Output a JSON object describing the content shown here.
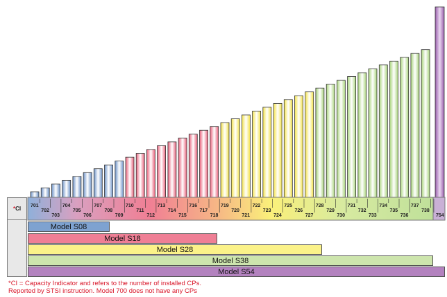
{
  "ci_header": {
    "star": "*",
    "text": "CI"
  },
  "ci_values": [
    "701",
    "702",
    "703",
    "704",
    "705",
    "706",
    "707",
    "708",
    "709",
    "710",
    "711",
    "712",
    "713",
    "714",
    "715",
    "716",
    "717",
    "718",
    "719",
    "720",
    "721",
    "722",
    "723",
    "724",
    "725",
    "726",
    "727",
    "728",
    "729",
    "730",
    "731",
    "732",
    "733",
    "734",
    "735",
    "736",
    "737",
    "738",
    "754"
  ],
  "models": [
    {
      "label": "Model S08",
      "color": "#7ea2d0"
    },
    {
      "label": "Model S18",
      "color": "#ef7f95"
    },
    {
      "label": "Model S28",
      "color": "#fbf289"
    },
    {
      "label": "Model S38",
      "color": "#cde5ad"
    },
    {
      "label": "Model S54",
      "color": "#b382bf"
    }
  ],
  "group_colors": {
    "s08": "#6e93c8",
    "s18": "#e8607a",
    "s28": "#f8ea5c",
    "s38": "#b9db91",
    "s54": "#a46fb3"
  },
  "footnote": {
    "line1": "*CI = Capacity Indicator and refers to the number of installed CPs.",
    "line2": "Reported by STSI instruction. Model 700 does not have any CPs"
  }
}
